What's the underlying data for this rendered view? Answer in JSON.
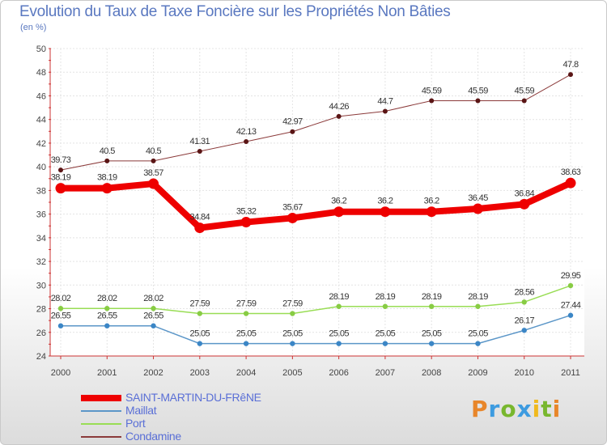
{
  "header": {
    "title": "Evolution du Taux de Taxe Foncière sur les Propriétés Non Bâties",
    "subtitle": "(en %)"
  },
  "logo": {
    "text": "Proxiti",
    "colors": [
      "#e8862a",
      "#3d9be0",
      "#78b72e",
      "#f0b91e"
    ]
  },
  "chart_data": {
    "type": "line",
    "title": "Evolution du Taux de Taxe Foncière sur les Propriétés Non Bâties",
    "ylabel": "(en %)",
    "x": [
      "2000",
      "2001",
      "2002",
      "2003",
      "2004",
      "2005",
      "2006",
      "2007",
      "2008",
      "2009",
      "2010",
      "2011"
    ],
    "ylim": [
      24,
      50
    ],
    "yticks": [
      "24",
      "26",
      "28",
      "30",
      "32",
      "34",
      "36",
      "38",
      "40",
      "42",
      "44",
      "46",
      "48",
      "50"
    ],
    "grid": true,
    "legend_position": "bottom-left",
    "series": [
      {
        "name": "SAINT-MARTIN-DU-FRêNE",
        "color": "#ee0000",
        "values": [
          38.19,
          38.19,
          38.57,
          34.84,
          35.32,
          35.67,
          36.2,
          36.2,
          36.2,
          36.45,
          36.84,
          38.63
        ],
        "labels": [
          "38.19",
          "38.19",
          "38.57",
          "34.84",
          "35.32",
          "35.67",
          "36.2",
          "36.2",
          "36.2",
          "36.45",
          "36.84",
          "38.63"
        ]
      },
      {
        "name": "Maillat",
        "color": "#5b96c8",
        "values": [
          26.55,
          26.55,
          26.55,
          25.05,
          25.05,
          25.05,
          25.05,
          25.05,
          25.05,
          25.05,
          26.17,
          27.44
        ],
        "labels": [
          "26.55",
          "26.55",
          "26.55",
          "25.05",
          "25.05",
          "25.05",
          "25.05",
          "25.05",
          "25.05",
          "25.05",
          "26.17",
          "27.44"
        ]
      },
      {
        "name": "Port",
        "color": "#99dd55",
        "values": [
          28.02,
          28.02,
          28.02,
          27.59,
          27.59,
          27.59,
          28.19,
          28.19,
          28.19,
          28.19,
          28.56,
          29.95
        ],
        "labels": [
          "28.02",
          "28.02",
          "28.02",
          "27.59",
          "27.59",
          "27.59",
          "28.19",
          "28.19",
          "28.19",
          "28.19",
          "28.56",
          "29.95"
        ]
      },
      {
        "name": "Condamine",
        "color": "#8b3a3a",
        "values": [
          39.73,
          40.5,
          40.5,
          41.31,
          42.13,
          42.97,
          44.26,
          44.7,
          45.59,
          45.59,
          45.59,
          47.8
        ],
        "labels": [
          "39.73",
          "40.5",
          "40.5",
          "41.31",
          "42.13",
          "42.97",
          "44.26",
          "44.7",
          "45.59",
          "45.59",
          "45.59",
          "47.8"
        ]
      }
    ]
  }
}
